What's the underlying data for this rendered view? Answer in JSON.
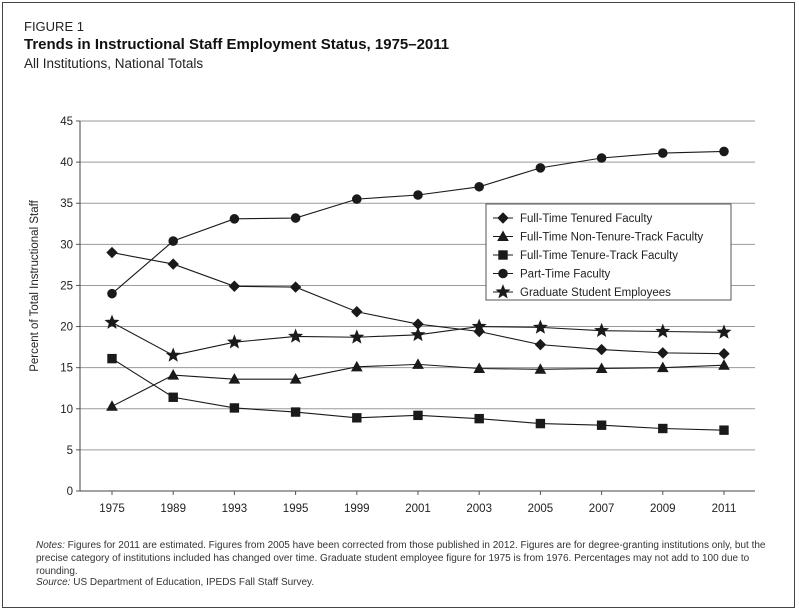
{
  "figure": {
    "label": "FIGURE 1",
    "title": "Trends in Instructional Staff Employment Status, 1975–2011",
    "subtitle": "All Institutions, National Totals"
  },
  "notes": {
    "lead": "Notes:",
    "text": " Figures for 2011 are estimated. Figures from 2005 have been corrected from those published in 2012. Figures are for degree-granting institutions only, but the precise category of institutions included has changed over time. Graduate student employee figure for 1975 is from 1976. Percentages may not add to 100 due to rounding."
  },
  "source": {
    "lead": "Source:",
    "text": " US Department of Education, IPEDS Fall Staff Survey."
  },
  "chart_data": {
    "type": "line",
    "title": "Trends in Instructional Staff Employment Status, 1975–2011",
    "xlabel": "",
    "ylabel": "Percent of Total Instructional Staff",
    "categories": [
      "1975",
      "1989",
      "1993",
      "1995",
      "1999",
      "2001",
      "2003",
      "2005",
      "2007",
      "2009",
      "2011"
    ],
    "ylim": [
      0,
      45
    ],
    "yticks": [
      0,
      5,
      10,
      15,
      20,
      25,
      30,
      35,
      40,
      45
    ],
    "grid": "horizontal",
    "legend_position": "right-center",
    "color": "#1a1a1a",
    "series": [
      {
        "name": "Full-Time Tenured Faculty",
        "marker": "diamond",
        "values": [
          29.0,
          27.6,
          24.9,
          24.8,
          21.8,
          20.3,
          19.4,
          17.8,
          17.2,
          16.8,
          16.7
        ]
      },
      {
        "name": "Full-Time Non-Tenure-Track Faculty",
        "marker": "triangle",
        "values": [
          10.3,
          14.1,
          13.6,
          13.6,
          15.1,
          15.4,
          14.9,
          14.8,
          14.9,
          15.0,
          15.3
        ]
      },
      {
        "name": "Full-Time Tenure-Track Faculty",
        "marker": "square",
        "values": [
          16.1,
          11.4,
          10.1,
          9.6,
          8.9,
          9.2,
          8.8,
          8.2,
          8.0,
          7.6,
          7.4
        ]
      },
      {
        "name": "Part-Time Faculty",
        "marker": "circle",
        "values": [
          24.0,
          30.4,
          33.1,
          33.2,
          35.5,
          36.0,
          37.0,
          39.3,
          40.5,
          41.1,
          41.3
        ]
      },
      {
        "name": "Graduate Student Employees",
        "marker": "star",
        "values": [
          20.5,
          16.5,
          18.1,
          18.8,
          18.7,
          19.0,
          20.0,
          19.9,
          19.5,
          19.4,
          19.3
        ]
      }
    ]
  }
}
